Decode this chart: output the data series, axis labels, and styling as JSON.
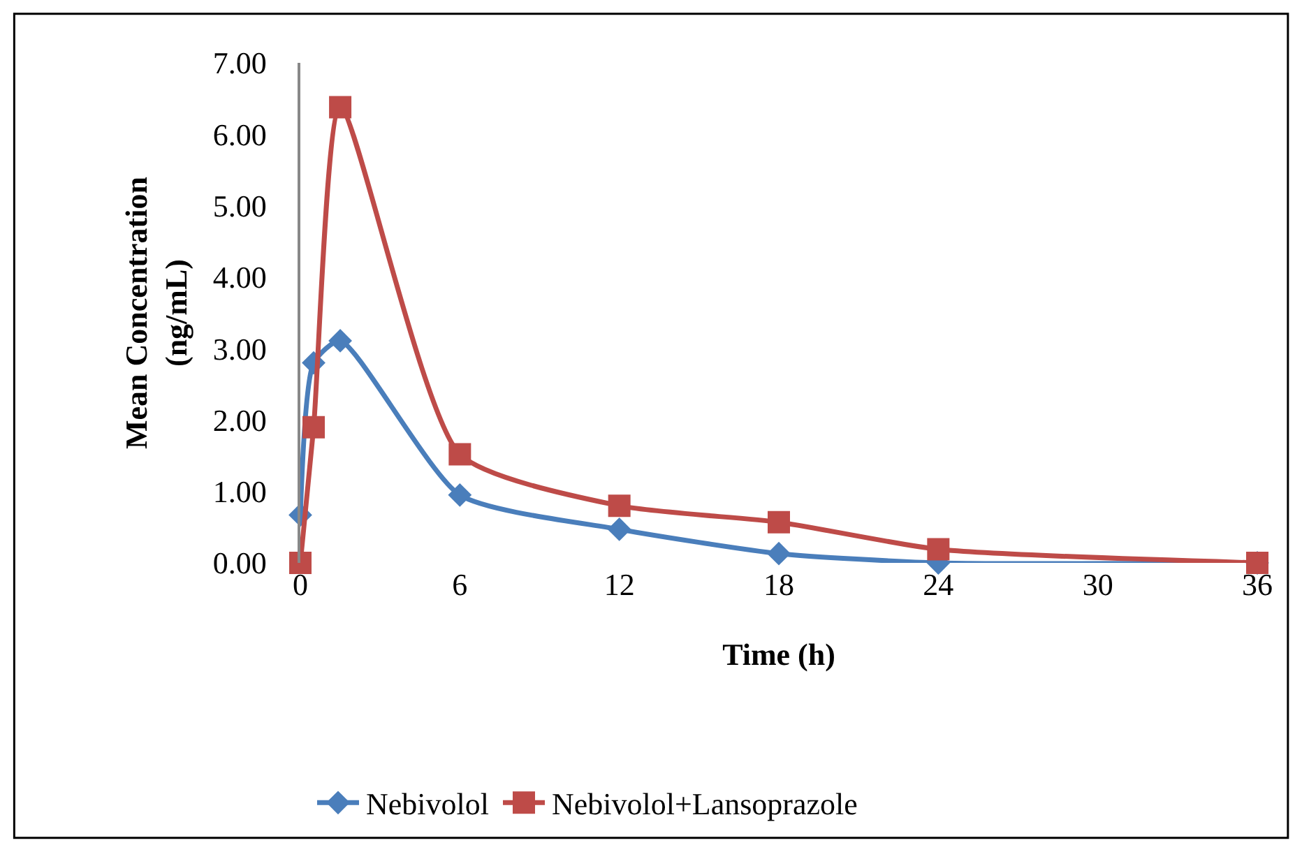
{
  "chart_data": {
    "type": "line",
    "xlabel": "Time (h)",
    "ylabel": "Mean Concentration\n(ng/mL)",
    "x": [
      0,
      0.5,
      1.5,
      6,
      12,
      18,
      24,
      36
    ],
    "series": [
      {
        "name": "Nebivolol",
        "color": "#4a7ebb",
        "marker": "diamond",
        "values": [
          0.67,
          2.8,
          3.11,
          0.95,
          0.47,
          0.13,
          0.0,
          0.0
        ]
      },
      {
        "name": "Nebivolol+Lansoprazole",
        "color": "#be4b48",
        "marker": "square",
        "values": [
          0.0,
          1.9,
          6.38,
          1.52,
          0.8,
          0.57,
          0.19,
          0.0
        ]
      }
    ],
    "xlim": [
      0,
      36
    ],
    "xticks": [
      0,
      6,
      12,
      18,
      24,
      30,
      36
    ],
    "ylim": [
      0,
      7
    ],
    "yticks": [
      {
        "value": 0,
        "label": "0.00"
      },
      {
        "value": 1,
        "label": "1.00"
      },
      {
        "value": 2,
        "label": "2.00"
      },
      {
        "value": 3,
        "label": "3.00"
      },
      {
        "value": 4,
        "label": "4.00"
      },
      {
        "value": 5,
        "label": "5.00"
      },
      {
        "value": 6,
        "label": "6.00"
      },
      {
        "value": 7,
        "label": "7.00"
      }
    ],
    "legend": "bottom",
    "line_style": "solid"
  }
}
